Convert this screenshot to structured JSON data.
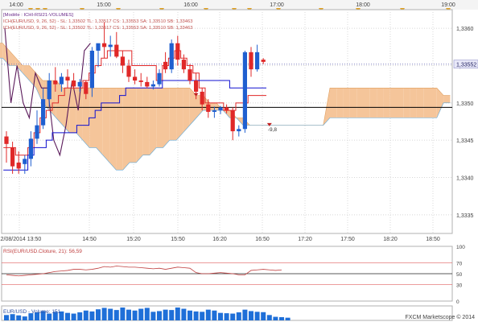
{
  "chart_data": {
    "type": "candlestick",
    "top_time_labels": [
      "14:00",
      "15:00",
      "16:00",
      "17:00",
      "18:00",
      "19:00"
    ],
    "legend_lines": [
      {
        "text": "[Modèle : ICHI-RSI21-VOLUMES]",
        "color": "#6a2a8a"
      },
      {
        "text": "ICH(EUR/USD, 9, 26, 52) -  SL: 1,33502  TL: 1,33517  CS: 1,33553  SA: 1,33510  SB: 1,33463",
        "color": "#c0504d"
      },
      {
        "text": "ICH(EUR/USD, 9, 26, 52) -  SL: 1,33502  TL: 1,33517  CS: 1,33553  SA: 1,33510  SB: 1,33463",
        "color": "#c0504d"
      }
    ],
    "price_axis": {
      "ticks": [
        "1,3360",
        "1,3355",
        "1,3350",
        "1,3345",
        "1,3340",
        "1,3335"
      ],
      "ylim": [
        1.33325,
        1.33625
      ]
    },
    "current_price_label": "1,33552",
    "x_axis_labels": [
      "12/08/2014 13:50",
      "14:50",
      "15:20",
      "15:50",
      "16:20",
      "16:50",
      "17:20",
      "17:50",
      "18:20",
      "18:50"
    ],
    "candles": [
      {
        "o": 1.33455,
        "h": 1.33462,
        "l": 1.3342,
        "c": 1.33445
      },
      {
        "o": 1.3344,
        "h": 1.33448,
        "l": 1.33405,
        "c": 1.33415
      },
      {
        "o": 1.3342,
        "h": 1.33435,
        "l": 1.33405,
        "c": 1.33412
      },
      {
        "o": 1.33418,
        "h": 1.3343,
        "l": 1.33405,
        "c": 1.33425
      },
      {
        "o": 1.33425,
        "h": 1.33462,
        "l": 1.33415,
        "c": 1.33452
      },
      {
        "o": 1.33452,
        "h": 1.3349,
        "l": 1.33445,
        "c": 1.3347
      },
      {
        "o": 1.3347,
        "h": 1.3352,
        "l": 1.33465,
        "c": 1.33505
      },
      {
        "o": 1.33505,
        "h": 1.3354,
        "l": 1.33495,
        "c": 1.3353
      },
      {
        "o": 1.3353,
        "h": 1.33548,
        "l": 1.33515,
        "c": 1.33525
      },
      {
        "o": 1.33525,
        "h": 1.3354,
        "l": 1.33515,
        "c": 1.33535
      },
      {
        "o": 1.33535,
        "h": 1.33545,
        "l": 1.3352,
        "c": 1.3353
      },
      {
        "o": 1.3353,
        "h": 1.3354,
        "l": 1.33518,
        "c": 1.33522
      },
      {
        "o": 1.33522,
        "h": 1.33532,
        "l": 1.33515,
        "c": 1.33528
      },
      {
        "o": 1.33528,
        "h": 1.3353,
        "l": 1.33505,
        "c": 1.33512
      },
      {
        "o": 1.3352,
        "h": 1.33575,
        "l": 1.33508,
        "c": 1.3357
      },
      {
        "o": 1.3357,
        "h": 1.33578,
        "l": 1.33548,
        "c": 1.3358
      },
      {
        "o": 1.3358,
        "h": 1.33608,
        "l": 1.3356,
        "c": 1.33575
      },
      {
        "o": 1.33575,
        "h": 1.3359,
        "l": 1.33562,
        "c": 1.33578
      },
      {
        "o": 1.33578,
        "h": 1.33595,
        "l": 1.3356,
        "c": 1.33562
      },
      {
        "o": 1.33562,
        "h": 1.3357,
        "l": 1.3354,
        "c": 1.3355
      },
      {
        "o": 1.3355,
        "h": 1.33558,
        "l": 1.33528,
        "c": 1.33535
      },
      {
        "o": 1.33535,
        "h": 1.33545,
        "l": 1.33525,
        "c": 1.3353
      },
      {
        "o": 1.3353,
        "h": 1.3354,
        "l": 1.33522,
        "c": 1.33528
      },
      {
        "o": 1.33528,
        "h": 1.33535,
        "l": 1.3352,
        "c": 1.33522
      },
      {
        "o": 1.33522,
        "h": 1.3353,
        "l": 1.33518,
        "c": 1.33525
      },
      {
        "o": 1.33525,
        "h": 1.33545,
        "l": 1.33522,
        "c": 1.3354
      },
      {
        "o": 1.33555,
        "h": 1.33568,
        "l": 1.3354,
        "c": 1.33545
      },
      {
        "o": 1.33545,
        "h": 1.33585,
        "l": 1.3354,
        "c": 1.3358
      },
      {
        "o": 1.3358,
        "h": 1.3359,
        "l": 1.3355,
        "c": 1.33558
      },
      {
        "o": 1.33558,
        "h": 1.33565,
        "l": 1.3354,
        "c": 1.33545
      },
      {
        "o": 1.33545,
        "h": 1.33552,
        "l": 1.33525,
        "c": 1.3353
      },
      {
        "o": 1.3353,
        "h": 1.3354,
        "l": 1.33505,
        "c": 1.33515
      },
      {
        "o": 1.33515,
        "h": 1.3352,
        "l": 1.3349,
        "c": 1.33498
      },
      {
        "o": 1.33498,
        "h": 1.33505,
        "l": 1.3348,
        "c": 1.33488
      },
      {
        "o": 1.33488,
        "h": 1.33495,
        "l": 1.3348,
        "c": 1.3349
      },
      {
        "o": 1.3349,
        "h": 1.33496,
        "l": 1.33485,
        "c": 1.33494
      },
      {
        "o": 1.33494,
        "h": 1.33498,
        "l": 1.33486,
        "c": 1.3349
      },
      {
        "o": 1.3349,
        "h": 1.33494,
        "l": 1.3345,
        "c": 1.33462
      },
      {
        "o": 1.33462,
        "h": 1.3347,
        "l": 1.33455,
        "c": 1.33465
      },
      {
        "o": 1.33465,
        "h": 1.3357,
        "l": 1.3346,
        "c": 1.33568
      },
      {
        "o": 1.33568,
        "h": 1.33575,
        "l": 1.33535,
        "c": 1.33545
      },
      {
        "o": 1.33545,
        "h": 1.33578,
        "l": 1.33542,
        "c": 1.33568
      },
      {
        "o": 1.33558,
        "h": 1.3356,
        "l": 1.33552,
        "c": 1.33555
      }
    ],
    "tenkan": [
      1.3344,
      1.3344,
      1.3343,
      1.3343,
      1.3344,
      1.3346,
      1.3348,
      1.3349,
      1.335,
      1.3351,
      1.3352,
      1.3352,
      1.3352,
      1.3353,
      1.3354,
      1.3355,
      1.3356,
      1.3357,
      1.3357,
      1.3357,
      1.3357,
      1.3355,
      1.3355,
      1.3355,
      1.3355,
      1.3353,
      1.3355,
      1.3356,
      1.3357,
      1.3356,
      1.3355,
      1.3354,
      1.3352,
      1.335,
      1.335,
      1.335,
      1.3349,
      1.3349,
      1.335,
      1.335,
      1.3351,
      1.3351,
      1.3351
    ],
    "kijun": [
      1.3341,
      1.3341,
      1.3341,
      1.3341,
      1.3343,
      1.3344,
      1.3344,
      1.3345,
      1.3346,
      1.3346,
      1.3346,
      1.3346,
      1.3347,
      1.3347,
      1.3348,
      1.3349,
      1.335,
      1.335,
      1.335,
      1.3351,
      1.3352,
      1.3352,
      1.3352,
      1.3352,
      1.3352,
      1.3352,
      1.3353,
      1.3353,
      1.3353,
      1.3353,
      1.3353,
      1.3353,
      1.3353,
      1.3353,
      1.3353,
      1.3353,
      1.3353,
      1.3352,
      1.3352,
      1.3352,
      1.3352,
      1.3352,
      1.3352
    ],
    "chikou": [
      1.336,
      1.335,
      1.3355,
      1.335,
      1.3348,
      1.3354,
      1.3352,
      1.3352,
      1.3345,
      1.3343,
      1.3347,
      1.3353,
      1.3349,
      1.3357,
      1.3358
    ],
    "cloud": {
      "senkou_a": [
        1.3358,
        1.3358,
        1.3357,
        1.3356,
        1.3355,
        1.3355,
        1.3354,
        1.3353,
        1.3353,
        1.3353,
        1.3352,
        1.3352,
        1.3352,
        1.3352,
        1.3352,
        1.3352,
        1.3352,
        1.3352,
        1.3352,
        1.3352,
        1.3352,
        1.3352,
        1.3352,
        1.3352,
        1.3352,
        1.3352,
        1.3352,
        1.3352,
        1.3352,
        1.3352,
        1.3351,
        1.3351,
        1.335,
        1.335,
        1.3349,
        1.3349,
        1.3348,
        1.3348,
        1.3347,
        1.3347,
        1.3347,
        1.3347,
        1.3347,
        1.3347,
        1.3347,
        1.3347,
        1.3347,
        1.3347,
        1.3347,
        1.3347,
        1.3352,
        1.3352,
        1.3352,
        1.3352,
        1.3352,
        1.3352,
        1.3352,
        1.3352,
        1.3352,
        1.3352,
        1.3352,
        1.3352,
        1.3352,
        1.3352,
        1.3352,
        1.3352,
        1.3352,
        1.3351,
        1.3351
      ],
      "senkou_b": [
        1.3356,
        1.3356,
        1.3355,
        1.3355,
        1.3354,
        1.3353,
        1.3352,
        1.335,
        1.3349,
        1.3348,
        1.3347,
        1.3346,
        1.3346,
        1.3345,
        1.3344,
        1.3344,
        1.3343,
        1.3342,
        1.3341,
        1.3341,
        1.3342,
        1.3342,
        1.3343,
        1.3343,
        1.3344,
        1.3344,
        1.3345,
        1.3345,
        1.3346,
        1.3347,
        1.3348,
        1.3349,
        1.3349,
        1.3349,
        1.3349,
        1.3348,
        1.3348,
        1.3347,
        1.3347,
        1.3347,
        1.3347,
        1.3347,
        1.3347,
        1.3347,
        1.3347,
        1.3347,
        1.3347,
        1.3347,
        1.3347,
        1.3347,
        1.3348,
        1.3348,
        1.3348,
        1.3348,
        1.3348,
        1.3348,
        1.3348,
        1.3348,
        1.3348,
        1.3348,
        1.3348,
        1.3348,
        1.3348,
        1.3348,
        1.3348,
        1.3348,
        1.3348,
        1.335,
        1.335
      ],
      "bull_color": "#f5c59a",
      "bear_color": "#87ceeb"
    },
    "horizontal_line": 1.33494,
    "dotted_price_line": 1.33552,
    "markers": [
      {
        "index": 31,
        "price": 1.33513,
        "type": "sell-arrow"
      },
      {
        "index": 43,
        "price": 1.33473,
        "type": "sell-arrow",
        "label": "-9,8"
      }
    ],
    "rsi": {
      "label": "RSI(EUR/USD.Cloture, 21): 56,59",
      "ticks": [
        "100",
        "70",
        "50",
        "30",
        "0"
      ],
      "levels": [
        70,
        50,
        30
      ],
      "values": [
        48,
        47,
        46,
        47,
        48,
        49,
        50,
        52,
        54,
        55,
        56,
        58,
        58,
        57,
        58,
        60,
        63,
        62,
        64,
        63,
        62,
        62,
        61,
        60,
        59,
        60,
        58,
        60,
        62,
        61,
        60,
        52,
        50,
        50,
        51,
        52,
        51,
        50,
        48,
        48,
        56,
        57,
        58,
        57,
        56,
        57
      ]
    },
    "volume": {
      "label": "EUR/USD - Volume: 151",
      "values": [
        30,
        35,
        28,
        22,
        40,
        45,
        52,
        38,
        48,
        50,
        42,
        38,
        45,
        55,
        50,
        62,
        70,
        65,
        58,
        72,
        60,
        55,
        65,
        70,
        48,
        52,
        60,
        58,
        72,
        65,
        55,
        50,
        48,
        60,
        55,
        42,
        40,
        38,
        45,
        60,
        52,
        48,
        46,
        30,
        20,
        18,
        15
      ]
    },
    "copyright": "FXCM Marketscope © 2014",
    "colors": {
      "bull_candle": "#1f5fd0",
      "bear_candle": "#e02828",
      "tenkan": "#e02828",
      "kijun": "#1010d0",
      "chikou": "#5a1a5a",
      "marker_color": "#c02020",
      "time_marker_color": "#e0a020",
      "panel_border": "#b0b0b0",
      "grid_dot": "#d8d8d8"
    }
  }
}
